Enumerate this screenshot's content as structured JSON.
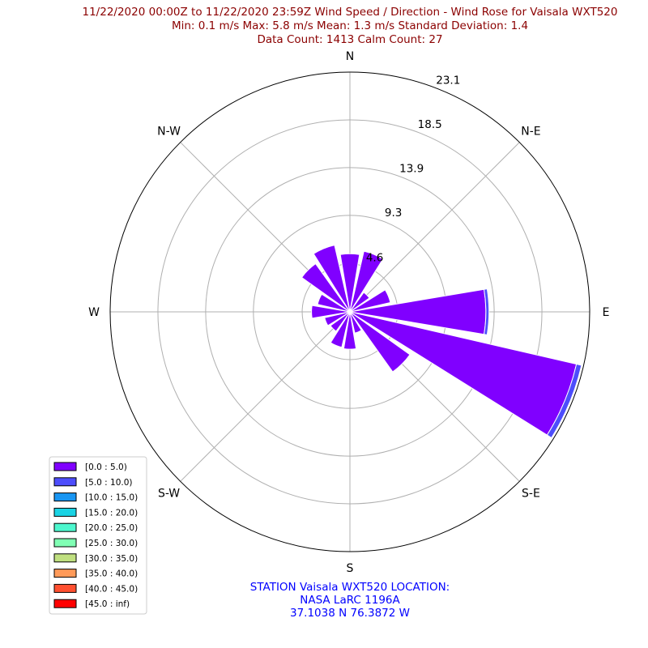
{
  "title_lines": [
    "11/22/2020 00:00Z to 11/22/2020 23:59Z Wind Speed / Direction - Wind Rose for Vaisala WXT520",
    "Min: 0.1 m/s   Max: 5.8 m/s   Mean: 1.3 m/s  Standard Deviation: 1.4",
    "Data Count: 1413  Calm Count:  27"
  ],
  "station_lines": [
    "STATION Vaisala WXT520 LOCATION:",
    "NASA LaRC 1196A",
    "37.1038 N 76.3872 W"
  ],
  "colors": {
    "title": "#8b0000",
    "station": "#0000ff",
    "grid": "#b0b0b0"
  },
  "chart_data": {
    "type": "wind-rose",
    "directions": [
      "N",
      "NNE",
      "NE",
      "ENE",
      "E",
      "ESE",
      "SE",
      "SSE",
      "S",
      "SSW",
      "SW",
      "WSW",
      "W",
      "WNW",
      "NW",
      "NNW"
    ],
    "direction_degrees": [
      0,
      22.5,
      45,
      67.5,
      90,
      112.5,
      135,
      157.5,
      180,
      202.5,
      225,
      247.5,
      270,
      292.5,
      315,
      337.5
    ],
    "compass_labels": [
      {
        "text": "N",
        "deg": 0
      },
      {
        "text": "N-E",
        "deg": 45
      },
      {
        "text": "E",
        "deg": 90
      },
      {
        "text": "S-E",
        "deg": 135
      },
      {
        "text": "S",
        "deg": 180
      },
      {
        "text": "S-W",
        "deg": 225
      },
      {
        "text": "W",
        "deg": 270
      },
      {
        "text": "N-W",
        "deg": 315
      }
    ],
    "radial_ticks": [
      "4.6",
      "9.3",
      "13.9",
      "18.5",
      "23.1"
    ],
    "radial_tick_values": [
      4.6,
      9.3,
      13.9,
      18.5,
      23.1
    ],
    "rmax": 23.1,
    "speed_bins": [
      {
        "label": "[0.0 : 5.0)",
        "color": "#8000ff"
      },
      {
        "label": "[5.0 : 10.0)",
        "color": "#4d4dfc"
      },
      {
        "label": "[10.0 : 15.0)",
        "color": "#1996f3"
      },
      {
        "label": "[15.0 : 20.0)",
        "color": "#1ad3e4"
      },
      {
        "label": "[20.0 : 25.0)",
        "color": "#4df7ce"
      },
      {
        "label": "[25.0 : 30.0)",
        "color": "#80ffb4"
      },
      {
        "label": "[30.0 : 35.0)",
        "color": "#c0e080"
      },
      {
        "label": "[35.0 : 40.0)",
        "color": "#ff9a59"
      },
      {
        "label": "[40.0 : 45.0)",
        "color": "#ff5030"
      },
      {
        "label": "[45.0 : inf)",
        "color": "#ff0000"
      }
    ],
    "series": [
      {
        "bin": "[0.0 : 5.0)",
        "values": [
          5.6,
          6.0,
          2.3,
          4.0,
          13.1,
          22.4,
          7.1,
          2.1,
          3.6,
          3.5,
          2.3,
          2.5,
          3.7,
          3.2,
          5.7,
          6.6
        ]
      },
      {
        "bin": "[5.0 : 10.0)",
        "values": [
          0,
          0,
          0,
          0,
          0.3,
          0.5,
          0,
          0,
          0,
          0,
          0,
          0,
          0,
          0,
          0,
          0
        ]
      }
    ]
  },
  "legend": {
    "location": "lower-left"
  }
}
